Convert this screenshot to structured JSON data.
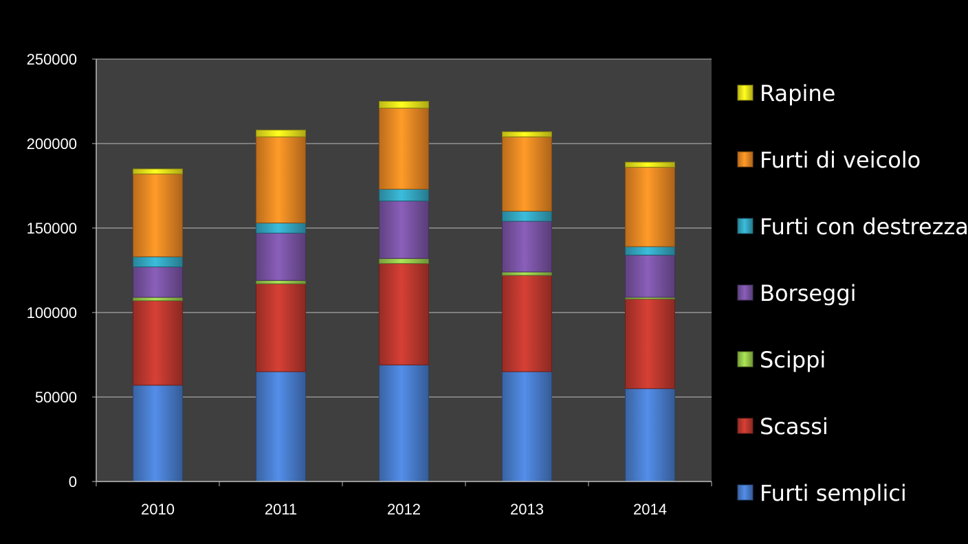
{
  "chart_data": {
    "type": "bar",
    "stacked": true,
    "title": "",
    "xlabel": "",
    "ylabel": "",
    "categories": [
      "2010",
      "2011",
      "2012",
      "2013",
      "2014"
    ],
    "ylim": [
      0,
      250000
    ],
    "yticks": [
      "0",
      "50000",
      "100000",
      "150000",
      "200000",
      "250000"
    ],
    "grid": true,
    "legend_position": "right",
    "series": [
      {
        "name": "Furti semplici",
        "color": "#4a7fd0",
        "values": [
          57000,
          65000,
          69000,
          65000,
          55000
        ]
      },
      {
        "name": "Scassi",
        "color": "#c0392f",
        "values": [
          50000,
          52000,
          60000,
          57000,
          53000
        ]
      },
      {
        "name": "Scippi",
        "color": "#9acd4c",
        "values": [
          2000,
          2000,
          3000,
          2000,
          1000
        ]
      },
      {
        "name": "Borseggi",
        "color": "#7b55a6",
        "values": [
          18000,
          28000,
          34000,
          30000,
          25000
        ]
      },
      {
        "name": "Furti con destrezza",
        "color": "#35a9c4",
        "values": [
          6000,
          6000,
          7000,
          6000,
          5000
        ]
      },
      {
        "name": "Furti di veicolo",
        "color": "#f08a24",
        "values": [
          49000,
          51000,
          48000,
          44000,
          47000
        ]
      },
      {
        "name": "Rapine",
        "color": "#f2ea1c",
        "values": [
          3000,
          4000,
          4000,
          3000,
          3000
        ]
      }
    ]
  }
}
